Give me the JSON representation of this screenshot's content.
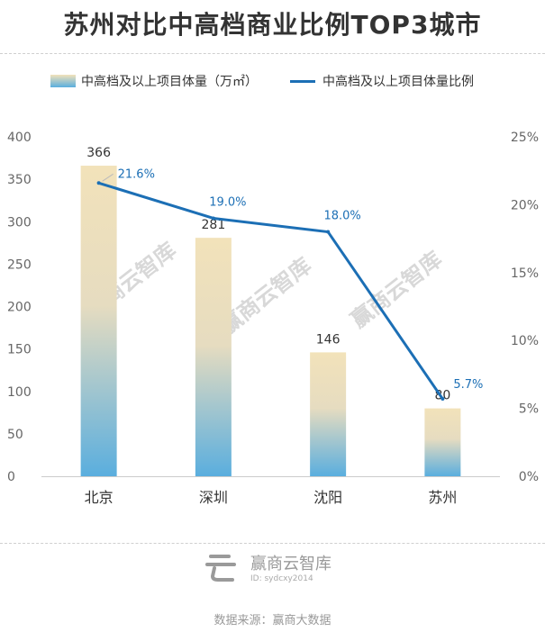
{
  "title": "苏州对比中高档商业比例TOP3城市",
  "legend": {
    "bar_label": "中高档及以上项目体量（万㎡）",
    "line_label": "中高档及以上项目体量比例"
  },
  "colors": {
    "bar_top": "#f2e2ba",
    "bar_bottom": "#5aaede",
    "line": "#1c6fb5",
    "line_label": "#1c6fb5",
    "axis_text": "#666666",
    "watermark": "#d8d8d8"
  },
  "chart_data": {
    "type": "bar",
    "categories": [
      "北京",
      "深圳",
      "沈阳",
      "苏州"
    ],
    "series": [
      {
        "name": "中高档及以上项目体量（万㎡）",
        "type": "bar",
        "axis": "left",
        "values": [
          366,
          281,
          146,
          80
        ],
        "labels": [
          "366",
          "281",
          "146",
          "80"
        ]
      },
      {
        "name": "中高档及以上项目体量比例",
        "type": "line",
        "axis": "right",
        "values": [
          21.6,
          19.0,
          18.0,
          5.7
        ],
        "labels": [
          "21.6%",
          "19.0%",
          "18.0%",
          "5.7%"
        ]
      }
    ],
    "y_left": {
      "min": 0,
      "max": 400,
      "ticks": [
        "0",
        "50",
        "100",
        "150",
        "200",
        "250",
        "300",
        "350",
        "400"
      ]
    },
    "y_right": {
      "min": 0,
      "max": 25,
      "ticks": [
        "0%",
        "5%",
        "10%",
        "15%",
        "20%",
        "25%"
      ]
    },
    "grid": false,
    "legend_position": "top"
  },
  "watermark": "赢商云智库",
  "footer": {
    "brand": "赢商云智库",
    "id_text": "ID: sydcxy2014",
    "logo_icon": "yingshang-logo-icon"
  },
  "source": "数据来源：赢商大数据"
}
